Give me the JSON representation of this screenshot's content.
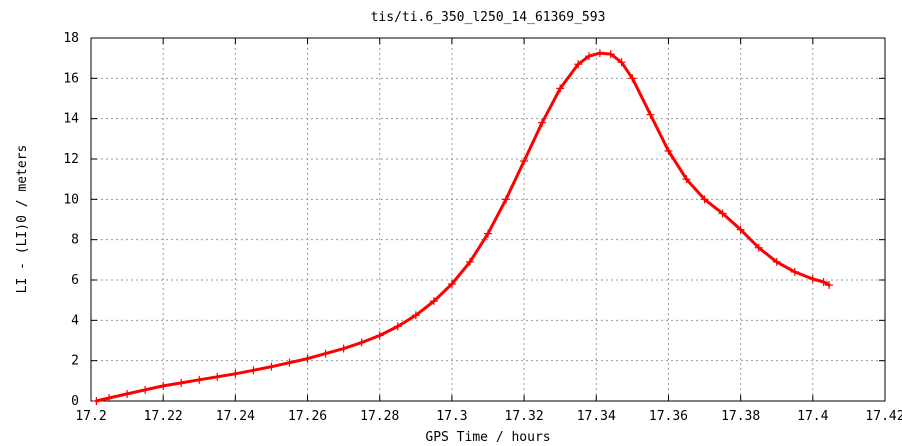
{
  "chart_data": {
    "type": "line",
    "title": "tis/ti.6_350_l250_14_61369_593",
    "xlabel": "GPS Time / hours",
    "ylabel": "LI - (LI)0 / meters",
    "xlim": [
      17.2,
      17.42
    ],
    "ylim": [
      0,
      18
    ],
    "x_ticks": [
      17.2,
      17.22,
      17.24,
      17.26,
      17.28,
      17.3,
      17.32,
      17.34,
      17.36,
      17.38,
      17.4,
      17.42
    ],
    "x_tick_labels": [
      "17.2",
      "17.22",
      "17.24",
      "17.26",
      "17.28",
      "17.3",
      "17.32",
      "17.34",
      "17.36",
      "17.38",
      "17.4",
      "17.42"
    ],
    "y_ticks": [
      0,
      2,
      4,
      6,
      8,
      10,
      12,
      14,
      16,
      18
    ],
    "y_tick_labels": [
      "0",
      "2",
      "4",
      "6",
      "8",
      "10",
      "12",
      "14",
      "16",
      "18"
    ],
    "grid": true,
    "marker": "plus",
    "color": "#ff0000",
    "series": [
      {
        "x": [
          17.2015,
          17.205,
          17.21,
          17.215,
          17.22,
          17.225,
          17.23,
          17.235,
          17.24,
          17.245,
          17.25,
          17.255,
          17.26,
          17.265,
          17.27,
          17.275,
          17.28,
          17.285,
          17.29,
          17.295,
          17.3,
          17.305,
          17.31,
          17.315,
          17.32,
          17.325,
          17.33,
          17.335,
          17.338,
          17.341,
          17.344,
          17.347,
          17.35,
          17.355,
          17.36,
          17.365,
          17.37,
          17.375,
          17.38,
          17.385,
          17.39,
          17.395,
          17.4,
          17.403,
          17.4045
        ],
        "y": [
          0.0,
          0.15,
          0.35,
          0.55,
          0.75,
          0.9,
          1.05,
          1.2,
          1.35,
          1.52,
          1.7,
          1.9,
          2.1,
          2.35,
          2.6,
          2.9,
          3.25,
          3.7,
          4.25,
          4.95,
          5.8,
          6.9,
          8.3,
          10.0,
          11.9,
          13.8,
          15.5,
          16.7,
          17.1,
          17.25,
          17.2,
          16.8,
          16.0,
          14.2,
          12.4,
          11.0,
          10.0,
          9.3,
          8.5,
          7.6,
          6.9,
          6.4,
          6.05,
          5.9,
          5.75
        ]
      }
    ]
  }
}
